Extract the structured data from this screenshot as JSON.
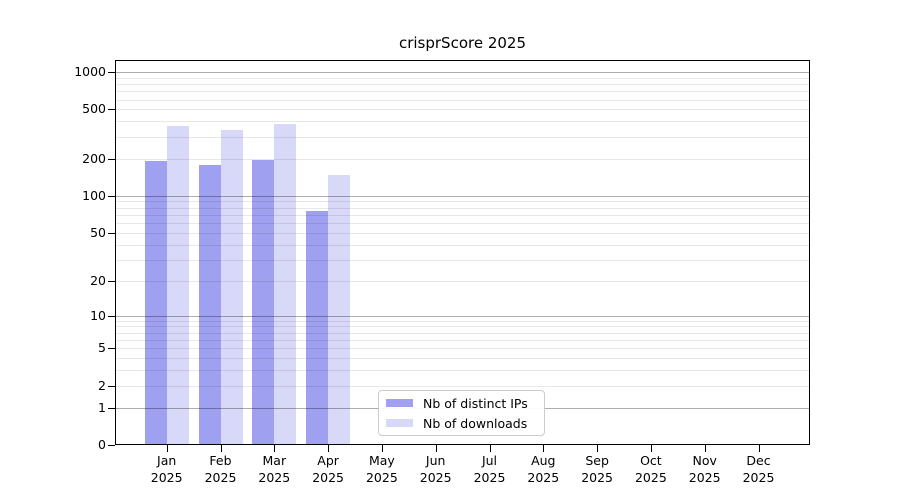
{
  "chart_data": {
    "type": "bar",
    "title": "crisprScore 2025",
    "year_label": "2025",
    "categories": [
      "Jan",
      "Feb",
      "Mar",
      "Apr",
      "May",
      "Jun",
      "Jul",
      "Aug",
      "Sep",
      "Oct",
      "Nov",
      "Dec"
    ],
    "series": [
      {
        "name": "Nb of distinct IPs",
        "color": "#a0a0f0",
        "values": [
          190,
          178,
          194,
          75,
          null,
          null,
          null,
          null,
          null,
          null,
          null,
          null
        ]
      },
      {
        "name": "Nb of downloads",
        "color": "#d8d8f8",
        "values": [
          368,
          340,
          378,
          148,
          null,
          null,
          null,
          null,
          null,
          null,
          null,
          null
        ]
      }
    ],
    "y_scale": "log10(1+x)",
    "ylim": [
      0,
      1250
    ],
    "y_ticks": [
      0,
      1,
      2,
      5,
      10,
      20,
      50,
      100,
      200,
      500,
      1000
    ],
    "y_major_gridlines": [
      1,
      10,
      100,
      1000
    ],
    "y_minor_gridlines": [
      2,
      3,
      4,
      5,
      6,
      7,
      8,
      9,
      20,
      30,
      40,
      50,
      60,
      70,
      80,
      90,
      200,
      300,
      400,
      500,
      600,
      700,
      800,
      900
    ],
    "grid": "horizontal, major+minor, drawn over bars",
    "legend_position": "inside-bottom-center",
    "xlabel": "",
    "ylabel": ""
  },
  "colors": {
    "axis": "#000000",
    "major_grid": "rgba(0,0,0,0.32)",
    "minor_grid": "rgba(0,0,0,0.09)",
    "legend_border": "#cbcbcb"
  }
}
